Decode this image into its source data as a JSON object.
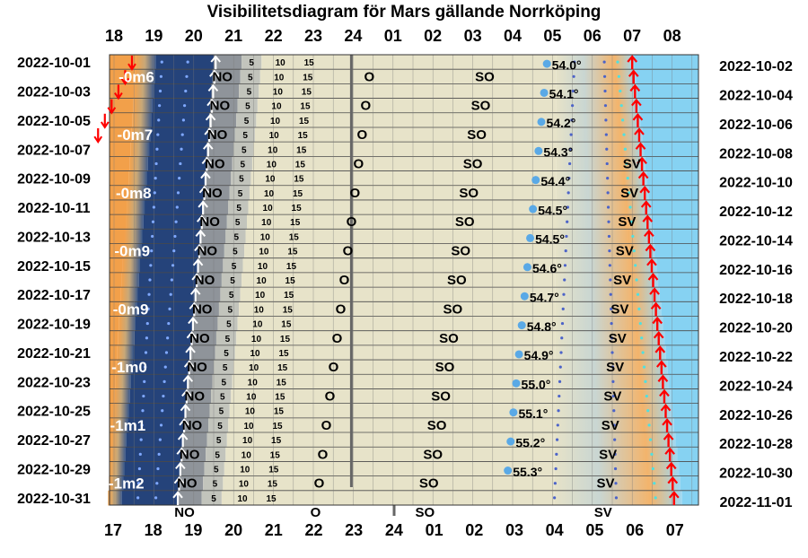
{
  "chart_data": {
    "type": "timeline",
    "title": "Visibilitetsdiagram för Mars gällande Norrköping",
    "top_hours": [
      "18",
      "19",
      "20",
      "21",
      "22",
      "23",
      "24",
      "01",
      "02",
      "03",
      "04",
      "05",
      "06",
      "07",
      "08"
    ],
    "bottom_hours": [
      "17",
      "18",
      "19",
      "20",
      "21",
      "22",
      "23",
      "24",
      "01",
      "02",
      "03",
      "04",
      "05",
      "06",
      "07"
    ],
    "left_dates": [
      "2022-10-01",
      "2022-10-03",
      "2022-10-05",
      "2022-10-07",
      "2022-10-09",
      "2022-10-11",
      "2022-10-13",
      "2022-10-15",
      "2022-10-17",
      "2022-10-19",
      "2022-10-21",
      "2022-10-23",
      "2022-10-25",
      "2022-10-27",
      "2022-10-29",
      "2022-10-31"
    ],
    "right_dates": [
      "2022-10-02",
      "2022-10-04",
      "2022-10-06",
      "2022-10-08",
      "2022-10-10",
      "2022-10-12",
      "2022-10-14",
      "2022-10-16",
      "2022-10-18",
      "2022-10-20",
      "2022-10-22",
      "2022-10-24",
      "2022-10-26",
      "2022-10-28",
      "2022-10-30",
      "2022-11-01"
    ],
    "magnitudes": [
      {
        "day": 3,
        "label": "-0m6"
      },
      {
        "day": 7,
        "label": "-0m7"
      },
      {
        "day": 11,
        "label": "-0m8"
      },
      {
        "day": 17,
        "label": "-0m9"
      },
      {
        "day": 21,
        "label": "-0m9"
      },
      {
        "day": 25,
        "label": "-1m0"
      },
      {
        "day": 29,
        "label": "-1m1"
      },
      {
        "day": 33,
        "label": "-1m2"
      }
    ],
    "culmination_altitudes": [
      {
        "day": 3,
        "label": "54.0°"
      },
      {
        "day": 7,
        "label": "54.1°"
      },
      {
        "day": 11,
        "label": "54.2°"
      },
      {
        "day": 15,
        "label": "54.3°"
      },
      {
        "day": 19,
        "label": "54.4°"
      },
      {
        "day": 23,
        "label": "54.5°"
      },
      {
        "day": 27,
        "label": "54.5°"
      },
      {
        "day": 31,
        "label": "54.6°"
      },
      {
        "day": 35,
        "label": "54.7°"
      },
      {
        "day": 39,
        "label": "54.8°"
      },
      {
        "day": 43,
        "label": "54.9°"
      },
      {
        "day": 47,
        "label": "55.0°"
      },
      {
        "day": 51,
        "label": "55.1°"
      },
      {
        "day": 55,
        "label": "55.2°"
      },
      {
        "day": 59,
        "label": "55.3°"
      }
    ],
    "direction_labels": {
      "ne": "NO",
      "e": "O",
      "se": "SO",
      "sw": "SV"
    },
    "altitude_marks": [
      "5",
      "10",
      "15"
    ],
    "colors": {
      "night": "#1f3a6e",
      "twilight_orange": "#f2a24a",
      "daylight": "#7fd0f2",
      "mars_visible": "#e6e2c8",
      "rise_arrow": "#ffffff",
      "sunrise_arrow": "#ff0000",
      "grid": "#555555"
    }
  }
}
